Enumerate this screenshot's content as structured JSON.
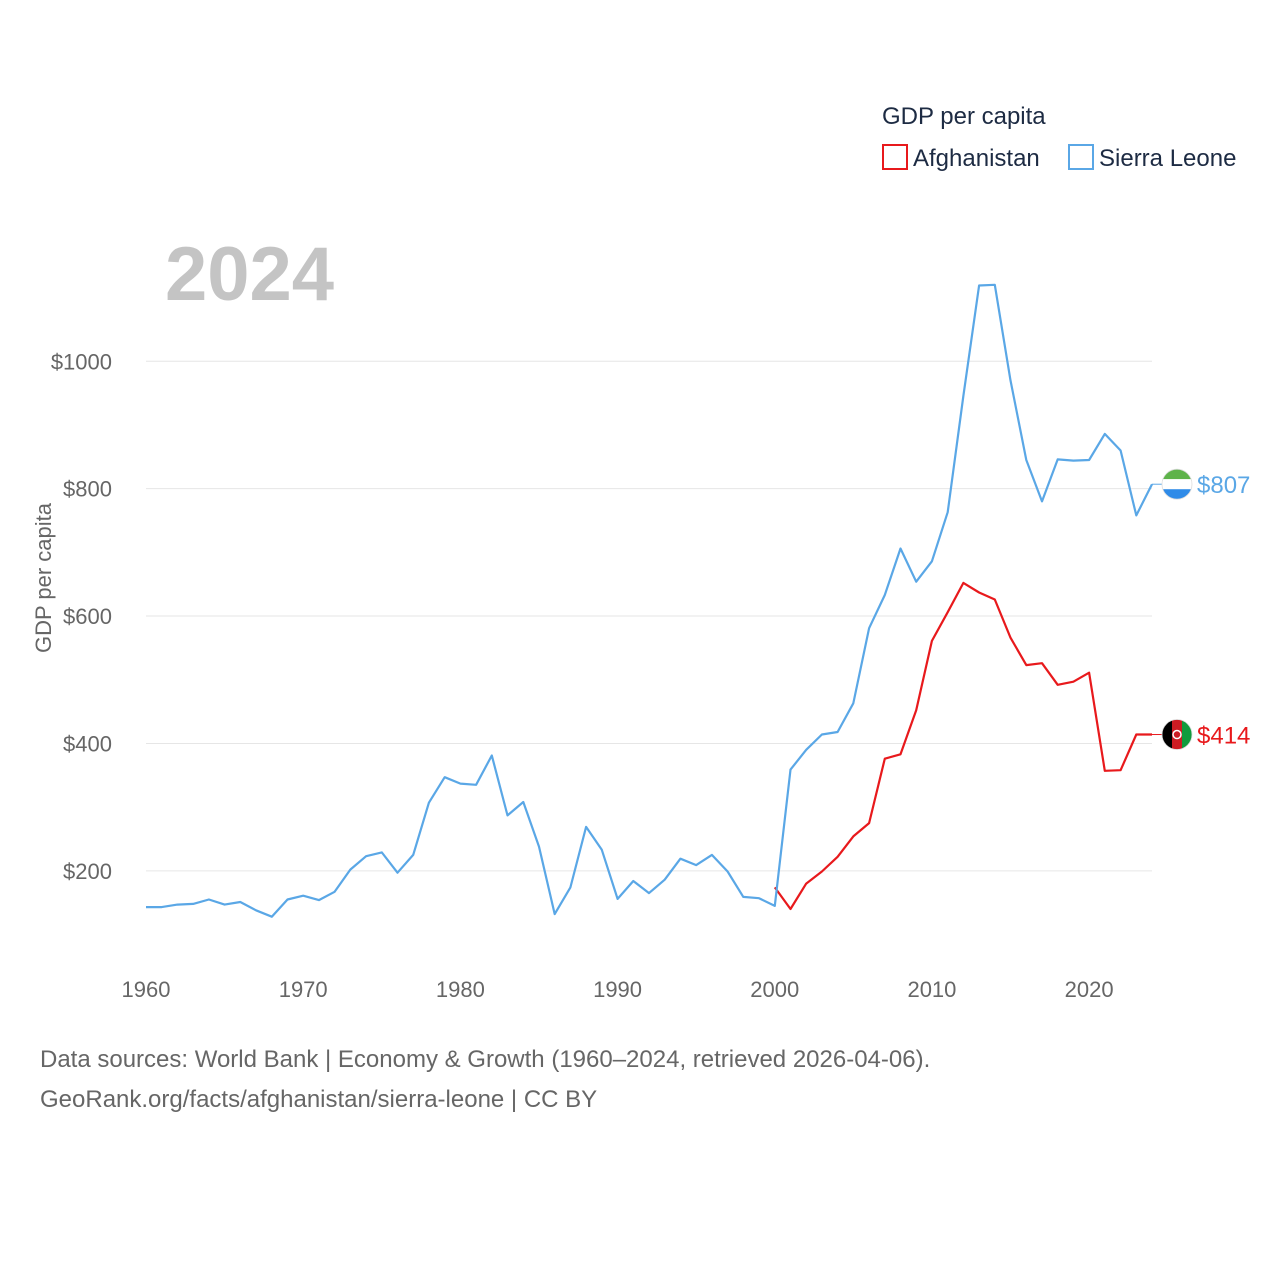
{
  "chart_data": {
    "type": "line",
    "title": "GDP per capita",
    "year_label": "2024",
    "ylabel": "GDP per capita",
    "xlabel": "",
    "xlim": [
      1960,
      2024
    ],
    "ylim": [
      60,
      1170
    ],
    "x_ticks": [
      1960,
      1970,
      1980,
      1990,
      2000,
      2010,
      2020
    ],
    "y_ticks": [
      200,
      400,
      600,
      800,
      1000
    ],
    "y_tick_labels": [
      "$200",
      "$400",
      "$600",
      "$800",
      "$1000"
    ],
    "legend_position": "top-right",
    "series": [
      {
        "name": "Afghanistan",
        "color": "#e8191c",
        "end_label": "$414",
        "flag": "afghanistan-flag",
        "x": [
          2000,
          2001,
          2002,
          2003,
          2004,
          2005,
          2006,
          2007,
          2008,
          2009,
          2010,
          2011,
          2012,
          2013,
          2014,
          2015,
          2016,
          2017,
          2018,
          2019,
          2020,
          2021,
          2022,
          2023,
          2024
        ],
        "values": [
          174,
          140,
          180,
          199,
          222,
          254,
          275,
          376,
          383,
          452,
          561,
          606,
          652,
          637,
          626,
          566,
          523,
          526,
          492,
          497,
          511,
          357,
          358,
          414,
          414
        ]
      },
      {
        "name": "Sierra Leone",
        "color": "#5aa7e6",
        "end_label": "$807",
        "flag": "sierra-leone-flag",
        "x": [
          1960,
          1961,
          1962,
          1963,
          1964,
          1965,
          1966,
          1967,
          1968,
          1969,
          1970,
          1971,
          1972,
          1973,
          1974,
          1975,
          1976,
          1977,
          1978,
          1979,
          1980,
          1981,
          1982,
          1983,
          1984,
          1985,
          1986,
          1987,
          1988,
          1989,
          1990,
          1991,
          1992,
          1993,
          1994,
          1995,
          1996,
          1997,
          1998,
          1999,
          2000,
          2001,
          2002,
          2003,
          2004,
          2005,
          2006,
          2007,
          2008,
          2009,
          2010,
          2011,
          2012,
          2013,
          2014,
          2015,
          2016,
          2017,
          2018,
          2019,
          2020,
          2021,
          2022,
          2023,
          2024
        ],
        "values": [
          143,
          143,
          147,
          148,
          155,
          147,
          151,
          138,
          128,
          155,
          161,
          154,
          167,
          202,
          223,
          229,
          197,
          225,
          307,
          347,
          337,
          335,
          381,
          287,
          308,
          238,
          132,
          174,
          269,
          233,
          156,
          184,
          165,
          186,
          219,
          209,
          225,
          199,
          159,
          157,
          145,
          359,
          390,
          414,
          418,
          463,
          581,
          633,
          706,
          654,
          686,
          763,
          946,
          1119,
          1120,
          970,
          845,
          780,
          846,
          844,
          845,
          886,
          860,
          758,
          807
        ]
      }
    ]
  },
  "footer": {
    "line1": "Data sources: World Bank | Economy & Growth (1960–2024, retrieved 2026-04-06).",
    "line2": "GeoRank.org/facts/afghanistan/sierra-leone | CC BY"
  }
}
